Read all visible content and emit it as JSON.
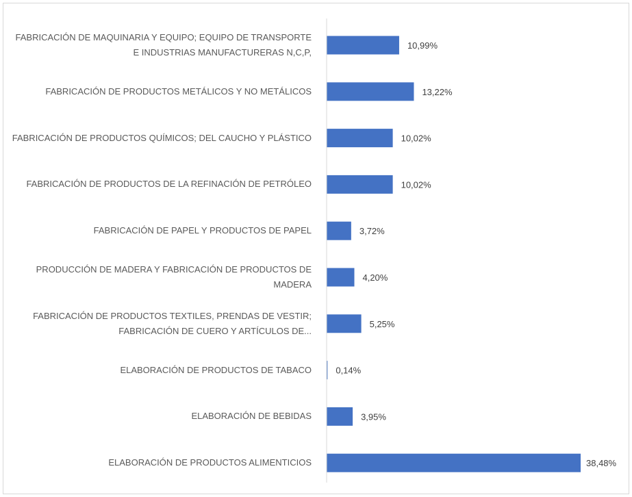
{
  "chart_data": {
    "type": "bar",
    "orientation": "horizontal",
    "categories": [
      "FABRICACIÓN DE MAQUINARIA Y EQUIPO; EQUIPO DE TRANSPORTE E INDUSTRIAS MANUFACTURERAS N,C,P,",
      "FABRICACIÓN DE PRODUCTOS METÁLICOS Y NO METÁLICOS",
      "FABRICACIÓN DE PRODUCTOS QUÍMICOS; DEL CAUCHO Y PLÁSTICO",
      "FABRICACIÓN DE PRODUCTOS DE LA REFINACIÓN DE PETRÓLEO",
      "FABRICACIÓN DE PAPEL Y PRODUCTOS DE PAPEL",
      "PRODUCCIÓN DE MADERA Y FABRICACIÓN DE PRODUCTOS DE MADERA",
      "FABRICACIÓN DE PRODUCTOS TEXTILES, PRENDAS DE VESTIR; FABRICACIÓN DE CUERO Y ARTÍCULOS DE...",
      "ELABORACIÓN DE PRODUCTOS DE TABACO",
      "ELABORACIÓN DE BEBIDAS",
      "ELABORACIÓN DE PRODUCTOS ALIMENTICIOS"
    ],
    "values": [
      10.99,
      13.22,
      10.02,
      10.02,
      3.72,
      4.2,
      5.25,
      0.14,
      3.95,
      38.48
    ],
    "value_labels": [
      "10,99%",
      "13,22%",
      "10,02%",
      "10,02%",
      "3,72%",
      "4,20%",
      "5,25%",
      "0,14%",
      "3,95%",
      "38,48%"
    ],
    "xlim": [
      0,
      38.48
    ],
    "grid": false,
    "bar_color": "#4472c4",
    "axis_color": "#d9d9d9"
  }
}
